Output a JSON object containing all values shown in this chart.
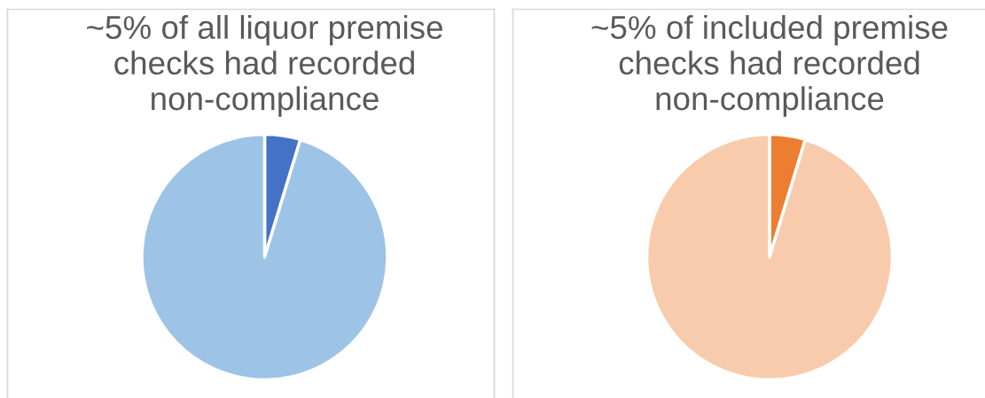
{
  "chart_data": [
    {
      "type": "pie",
      "title": "~5% of all liquor premise checks had recorded non-compliance",
      "categories": [
        null,
        null
      ],
      "values": [
        4.7,
        95.3
      ],
      "colors": [
        "#4472c4",
        "#9dc3e6"
      ]
    },
    {
      "type": "pie",
      "title": "~5% of included premise checks had recorded non-compliance",
      "categories": [
        null,
        null
      ],
      "values": [
        4.7,
        95.3
      ],
      "colors": [
        "#ed7d31",
        "#f8cbad"
      ]
    }
  ]
}
